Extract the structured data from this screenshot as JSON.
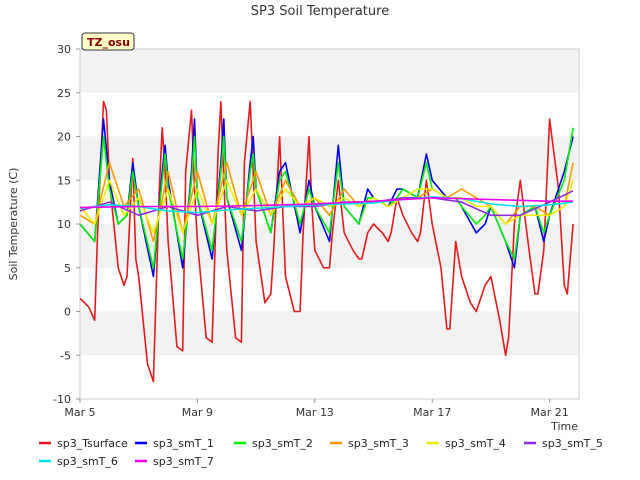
{
  "chart_data": {
    "type": "line",
    "title": "SP3 Soil Temperature",
    "ylabel": "Soil Temperature (C)",
    "xlabel": "Time",
    "badge": "TZ_osu",
    "ylim": [
      -10,
      30
    ],
    "yticks": [
      -10,
      -5,
      0,
      5,
      10,
      15,
      20,
      25,
      30
    ],
    "xlim": [
      0,
      17.0
    ],
    "xticks": [
      {
        "value": 0,
        "label": "Mar 5"
      },
      {
        "value": 4,
        "label": "Mar 9"
      },
      {
        "value": 8,
        "label": "Mar 13"
      },
      {
        "value": 12,
        "label": "Mar 17"
      },
      {
        "value": 16,
        "label": "Mar 21"
      }
    ],
    "legend_position": "bottom",
    "grid": "horizontal bands",
    "series": [
      {
        "name": "sp3_Tsurface",
        "color": "#e31a1c",
        "x": [
          0,
          0.3,
          0.5,
          0.6,
          0.8,
          0.9,
          1.0,
          1.3,
          1.5,
          1.6,
          1.8,
          1.9,
          2.0,
          2.3,
          2.5,
          2.7,
          2.8,
          2.9,
          3.0,
          3.3,
          3.5,
          3.6,
          3.8,
          3.9,
          4.0,
          4.3,
          4.5,
          4.7,
          4.8,
          4.9,
          5.0,
          5.3,
          5.5,
          5.6,
          5.8,
          5.9,
          6.0,
          6.3,
          6.5,
          6.6,
          6.8,
          7.0,
          7.3,
          7.5,
          7.6,
          7.8,
          7.9,
          8.0,
          8.3,
          8.5,
          8.6,
          8.8,
          9.0,
          9.3,
          9.5,
          9.6,
          9.8,
          10.0,
          10.3,
          10.5,
          10.6,
          10.8,
          11.0,
          11.3,
          11.5,
          11.6,
          11.8,
          12.0,
          12.3,
          12.5,
          12.6,
          12.8,
          13.0,
          13.3,
          13.5,
          13.6,
          13.8,
          14.0,
          14.3,
          14.5,
          14.6,
          14.8,
          15.0,
          15.3,
          15.5,
          15.6,
          15.8,
          16.0,
          16.3,
          16.5,
          16.6,
          16.8
        ],
        "values": [
          1.5,
          0.5,
          -1,
          9,
          24,
          23,
          15,
          5,
          3,
          4,
          17.5,
          6,
          4,
          -6,
          -8,
          14,
          21,
          16,
          8,
          -4,
          -4.5,
          16,
          23,
          14,
          8,
          -3,
          -3.5,
          18,
          24,
          15,
          7,
          -3,
          -3.5,
          17,
          24,
          16,
          8,
          1,
          2,
          7,
          20,
          4,
          0,
          0,
          9,
          20,
          12,
          7,
          5,
          5,
          9,
          15,
          9,
          7,
          6,
          6,
          9,
          10,
          9,
          8,
          9,
          13,
          11,
          9,
          8,
          9,
          15,
          10,
          5,
          -2,
          -2,
          8,
          4,
          1,
          0,
          1,
          3,
          4,
          -1,
          -5,
          -3,
          10,
          15,
          7,
          2,
          2,
          7,
          22,
          14,
          3,
          2,
          10
        ]
      },
      {
        "name": "sp3_smT_1",
        "color": "#0000ee",
        "x": [
          0,
          0.5,
          0.8,
          1.0,
          1.3,
          1.6,
          1.8,
          2.0,
          2.5,
          2.8,
          2.9,
          3.0,
          3.5,
          3.8,
          3.9,
          4.0,
          4.5,
          4.8,
          4.9,
          5.0,
          5.5,
          5.8,
          5.9,
          6.0,
          6.5,
          6.8,
          7.0,
          7.5,
          7.8,
          8.0,
          8.5,
          8.8,
          9.0,
          9.5,
          9.8,
          10.0,
          10.5,
          10.8,
          11.0,
          11.5,
          11.8,
          12.0,
          12.5,
          12.8,
          13.0,
          13.5,
          13.8,
          14.0,
          14.5,
          14.8,
          15.0,
          15.5,
          15.8,
          16.0,
          16.5,
          16.8
        ],
        "values": [
          10,
          8,
          22,
          15,
          10,
          11,
          17,
          12,
          4,
          16,
          19,
          15,
          5,
          16,
          22,
          13,
          6,
          17,
          22,
          13,
          7,
          17,
          20,
          14,
          9,
          16,
          17,
          9,
          15,
          12,
          8,
          19,
          12,
          10,
          14,
          13,
          12,
          14,
          14,
          13,
          18,
          15,
          13,
          13,
          12,
          9,
          10,
          12,
          8,
          5,
          11,
          12,
          8,
          11,
          16,
          20
        ]
      },
      {
        "name": "sp3_smT_2",
        "color": "#00ee00",
        "x": [
          0,
          0.5,
          0.8,
          1.0,
          1.3,
          1.6,
          1.8,
          2.0,
          2.5,
          2.8,
          2.9,
          3.0,
          3.5,
          3.8,
          3.9,
          4.0,
          4.5,
          4.8,
          4.9,
          5.0,
          5.5,
          5.8,
          5.9,
          6.0,
          6.5,
          6.8,
          7.0,
          7.5,
          7.8,
          8.0,
          8.5,
          8.8,
          9.0,
          9.5,
          9.8,
          10.0,
          10.5,
          10.8,
          11.0,
          11.5,
          11.8,
          12.0,
          12.5,
          12.8,
          13.0,
          13.5,
          13.8,
          14.0,
          14.5,
          14.8,
          15.0,
          15.5,
          15.8,
          16.0,
          16.5,
          16.8
        ],
        "values": [
          10,
          8,
          20,
          14,
          10,
          11,
          16,
          12,
          5,
          15,
          18,
          14,
          6,
          15,
          20,
          13,
          7,
          16,
          20,
          13,
          8,
          16,
          18,
          14,
          9,
          15,
          16,
          10,
          14,
          12,
          9,
          17,
          12,
          10,
          13,
          13,
          12,
          13,
          14,
          13,
          17,
          14,
          13,
          13,
          12,
          10,
          11,
          12,
          8,
          6,
          11,
          12,
          9,
          11,
          15,
          21
        ]
      },
      {
        "name": "sp3_smT_3",
        "color": "#ff9900",
        "x": [
          0,
          0.5,
          1.0,
          1.5,
          2.0,
          2.5,
          3.0,
          3.5,
          4.0,
          4.5,
          5.0,
          5.5,
          6.0,
          6.5,
          7.0,
          7.5,
          8.0,
          8.5,
          9.0,
          9.5,
          10.0,
          10.5,
          11.0,
          11.5,
          12.0,
          12.5,
          13.0,
          13.5,
          14.0,
          14.5,
          15.0,
          15.5,
          16.0,
          16.5,
          16.8
        ],
        "values": [
          11,
          10,
          17,
          12,
          14,
          8,
          16,
          9,
          16,
          10,
          17,
          11,
          16,
          11,
          15,
          12,
          13,
          11,
          14,
          12,
          13,
          12,
          13,
          13,
          14,
          13,
          14,
          13,
          12,
          10,
          12,
          12,
          11,
          12,
          17
        ]
      },
      {
        "name": "sp3_smT_4",
        "color": "#eeee00",
        "x": [
          0,
          0.5,
          1.0,
          1.5,
          2.0,
          2.5,
          3.0,
          3.5,
          4.0,
          4.5,
          5.0,
          5.5,
          6.0,
          6.5,
          7.0,
          7.5,
          8.0,
          8.5,
          9.0,
          9.5,
          10.0,
          10.5,
          11.0,
          11.5,
          12.0,
          12.5,
          13.0,
          13.5,
          14.0,
          14.5,
          15.0,
          15.5,
          16.0,
          16.5,
          16.8
        ],
        "values": [
          12,
          10,
          15,
          11,
          13,
          9,
          14,
          9,
          14,
          10,
          15,
          11,
          14,
          11,
          14,
          12,
          13,
          12,
          13,
          12,
          13,
          12,
          13,
          14,
          14,
          13,
          13,
          12,
          12,
          10,
          11,
          11,
          11,
          12,
          15
        ]
      },
      {
        "name": "sp3_smT_5",
        "color": "#8f2be3",
        "x": [
          0,
          1.0,
          2.0,
          3.0,
          4.0,
          5.0,
          6.0,
          7.0,
          8.0,
          9.0,
          10.0,
          11.0,
          12.0,
          13.0,
          14.0,
          15.0,
          16.0,
          16.8
        ],
        "values": [
          11.5,
          12.5,
          11,
          12,
          11,
          12,
          11.5,
          12,
          12,
          12.5,
          12.5,
          13,
          13,
          12.5,
          11,
          11,
          12.5,
          13.8
        ]
      },
      {
        "name": "sp3_smT_6",
        "color": "#00e5ee",
        "x": [
          0,
          1.0,
          2.0,
          3.0,
          4.0,
          5.0,
          6.0,
          7.0,
          8.0,
          9.0,
          10.0,
          11.0,
          12.0,
          13.0,
          14.0,
          15.0,
          16.0,
          16.8
        ],
        "values": [
          11.8,
          12.2,
          12,
          11.5,
          11.3,
          11.6,
          11.8,
          12,
          12.2,
          12.3,
          12.4,
          12.8,
          13.1,
          12.9,
          12.3,
          12,
          12.2,
          12.5
        ]
      },
      {
        "name": "sp3_smT_7",
        "color": "#ee00ee",
        "x": [
          0,
          2.0,
          4.0,
          6.0,
          8.0,
          10.0,
          12.0,
          14.0,
          16.0,
          16.8
        ],
        "values": [
          11.9,
          12.0,
          12.0,
          12.1,
          12.3,
          12.6,
          13.0,
          12.8,
          12.6,
          12.6
        ]
      }
    ]
  }
}
